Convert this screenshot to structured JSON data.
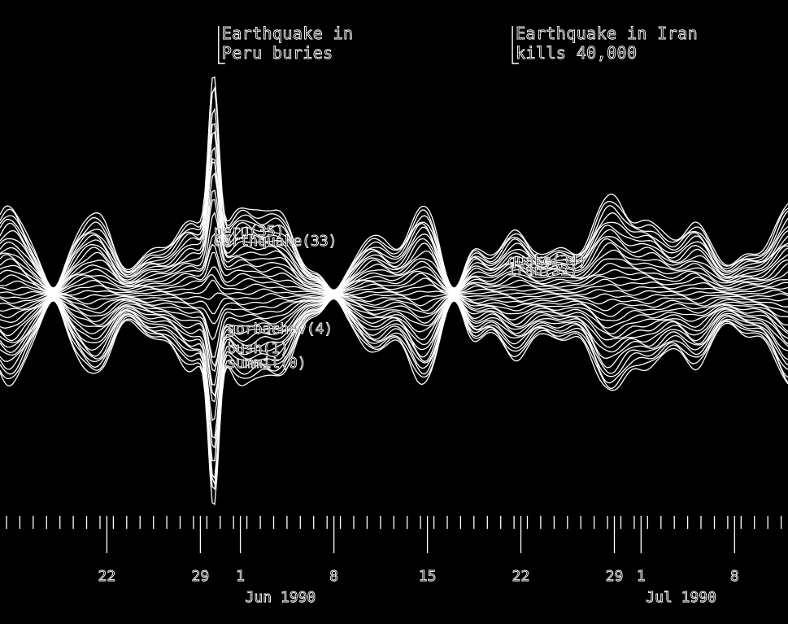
{
  "chart_data": {
    "type": "area",
    "subtype": "themeriver",
    "x_range": [
      "1990-05-14",
      "1990-07-12"
    ],
    "x_ticks": [
      {
        "label": "22",
        "date": "1990-05-22"
      },
      {
        "label": "29",
        "date": "1990-05-29"
      },
      {
        "label": "1",
        "date": "1990-06-01"
      },
      {
        "label": "8",
        "date": "1990-06-08"
      },
      {
        "label": "15",
        "date": "1990-06-15"
      },
      {
        "label": "22",
        "date": "1990-06-22"
      },
      {
        "label": "29",
        "date": "1990-06-29"
      },
      {
        "label": "1",
        "date": "1990-07-01"
      },
      {
        "label": "8",
        "date": "1990-07-08"
      }
    ],
    "month_labels": [
      {
        "label": "Jun 1990",
        "date": "1990-06-04"
      },
      {
        "label": "Jul 1990",
        "date": "1990-07-04"
      }
    ],
    "annotations": [
      {
        "lines": [
          "Earthquake in",
          "Peru buries"
        ],
        "date": "1990-05-30"
      },
      {
        "lines": [
          "Earthquake in Iran",
          "kills 40,000"
        ],
        "date": "1990-06-21"
      }
    ],
    "term_labels": [
      {
        "text": "peru(35)",
        "date": "1990-05-30",
        "level": 0.62
      },
      {
        "text": "earthquake(33)",
        "date": "1990-05-30",
        "level": 0.6
      },
      {
        "text": "quake(34)",
        "date": "1990-06-21",
        "level": 0.56
      },
      {
        "text": "iran(32)",
        "date": "1990-06-21",
        "level": 0.54
      },
      {
        "text": "gorbachev(4)",
        "date": "1990-05-31",
        "level": 0.42
      },
      {
        "text": "bush(1)",
        "date": "1990-05-31",
        "level": 0.38
      },
      {
        "text": "summit(0)",
        "date": "1990-05-31",
        "level": 0.35
      }
    ],
    "series_count": 36
  },
  "colors": {
    "background": "#000000",
    "foreground": "#ffffff"
  }
}
